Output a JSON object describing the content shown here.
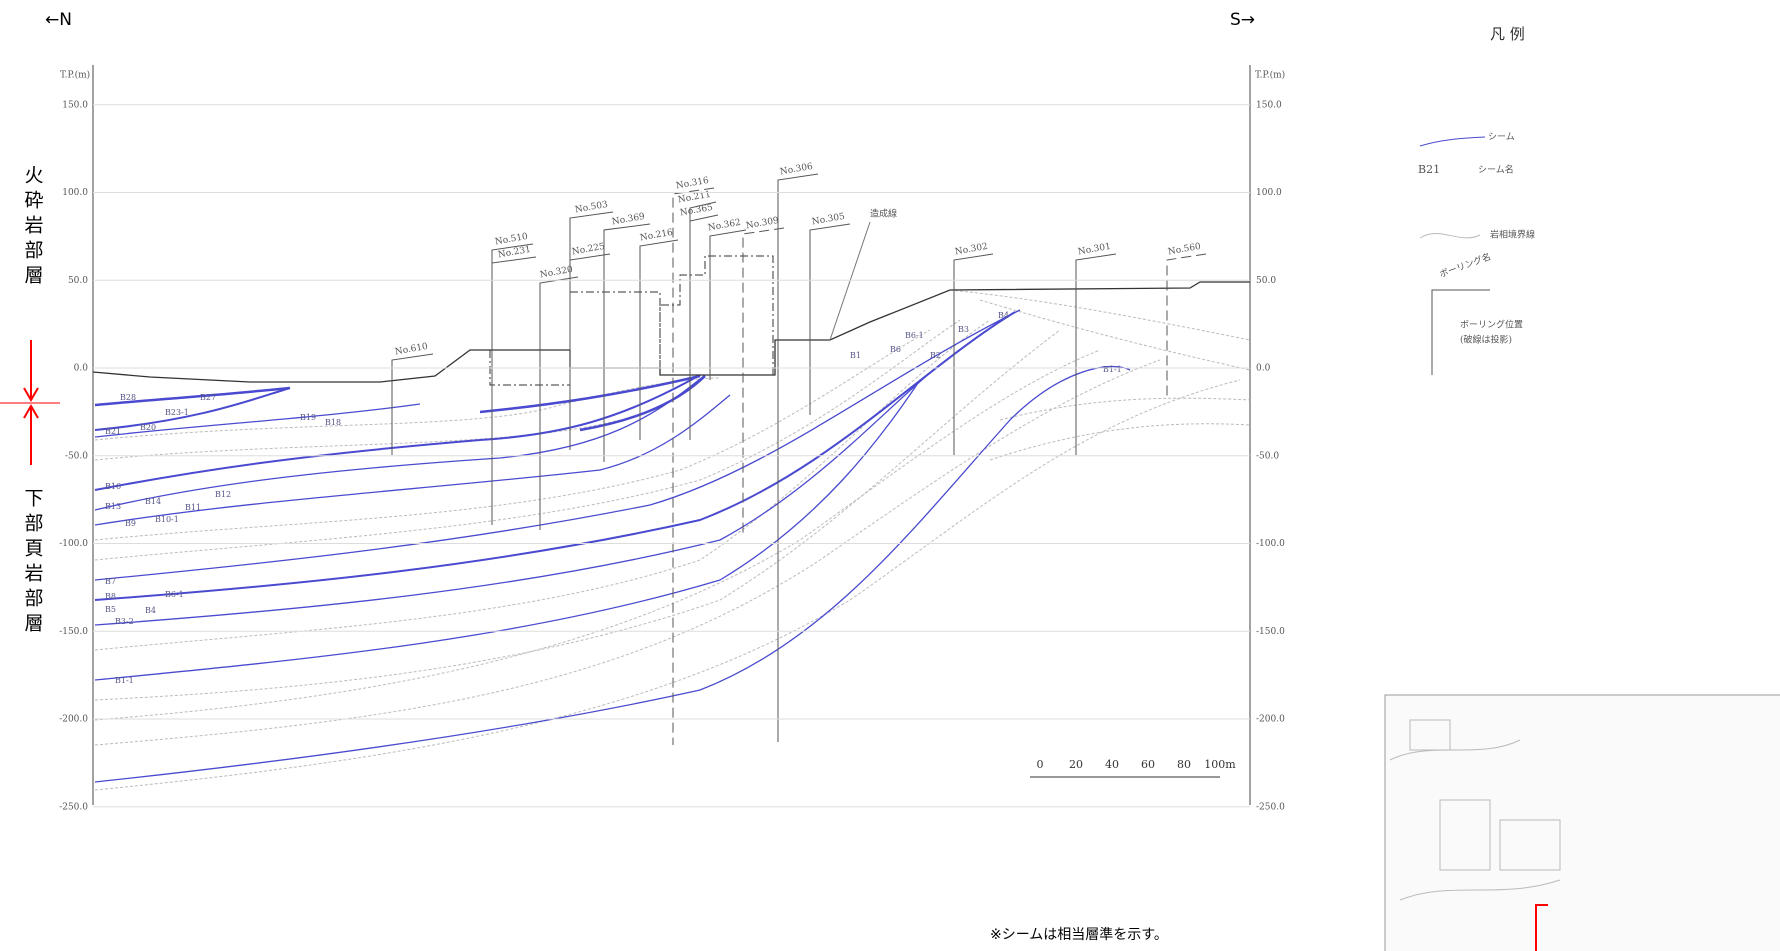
{
  "header": {
    "north": "←N",
    "south": "S→"
  },
  "axis": {
    "unit_label": "T.P.(m)",
    "ticks": [
      {
        "value": 150,
        "label": "150.0"
      },
      {
        "value": 100,
        "label": "100.0"
      },
      {
        "value": 50,
        "label": "50.0"
      },
      {
        "value": 0,
        "label": "0.0"
      },
      {
        "value": -50,
        "label": "-50.0"
      },
      {
        "value": -100,
        "label": "-100.0"
      },
      {
        "value": -150,
        "label": "-150.0"
      },
      {
        "value": -200,
        "label": "-200.0"
      },
      {
        "value": -250,
        "label": "-250.0"
      }
    ]
  },
  "zones": [
    "火砕岩部層",
    "下部頁岩部層"
  ],
  "borings": [
    "No.610",
    "No.510",
    "No.231",
    "No.503",
    "No.369",
    "No.225",
    "No.320",
    "No.216",
    "No.316",
    "No.211",
    "No.365",
    "No.362",
    "No.309",
    "No.306",
    "No.305",
    "No.302",
    "No.301",
    "No.560"
  ],
  "seams": [
    "B28",
    "B27",
    "B23-1",
    "B21",
    "B20",
    "B19",
    "B18",
    "B16",
    "B14",
    "B13",
    "B12",
    "B11",
    "B10-1",
    "B9",
    "B7",
    "B8",
    "B6-1",
    "B5",
    "B4",
    "B3-2",
    "B1-1",
    "B1",
    "B2",
    "B3",
    "B4",
    "B6-1",
    "B6",
    "B1-1"
  ],
  "annotations": {
    "fill_line": "造成線",
    "note": "※シームは相当層準を示す。"
  },
  "scale": {
    "labels": [
      "0",
      "20",
      "40",
      "60",
      "80",
      "100m"
    ]
  },
  "legend": {
    "title": "凡 例",
    "items": [
      "シーム",
      "B21",
      "シーム名",
      "岩相境界線",
      "ボーリング名",
      "ボーリング位置",
      "(破線は投影)"
    ]
  }
}
